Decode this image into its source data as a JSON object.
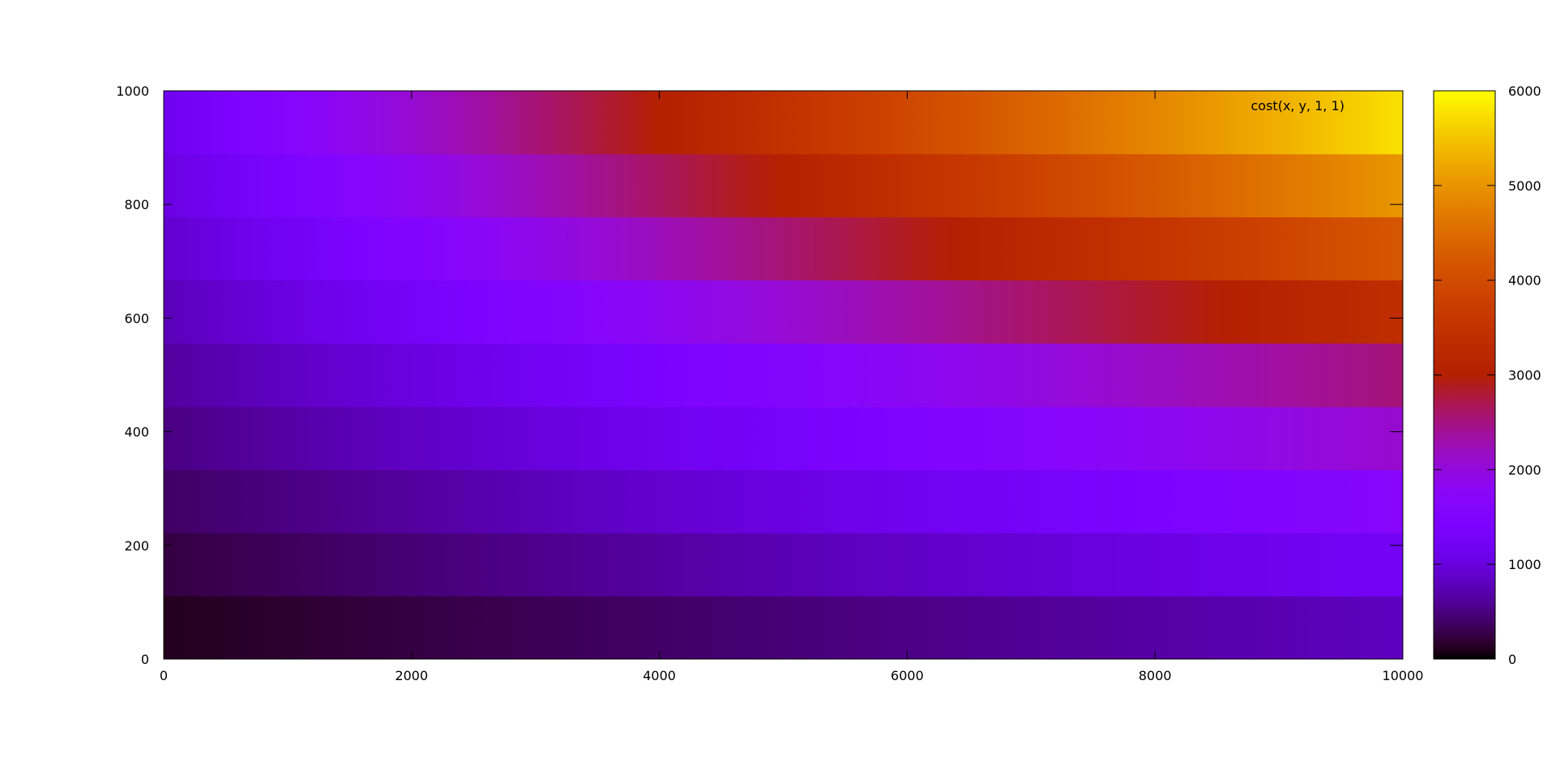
{
  "chart_data": {
    "type": "heatmap",
    "title": "",
    "xlabel": "",
    "ylabel": "",
    "legend_entry": "cost(x, y, 1, 1)",
    "legend_position": "top-right",
    "palette": "gnuplot (rgbformulae 7,5,15)",
    "grid": false,
    "xlim": [
      0,
      10000
    ],
    "ylim": [
      0,
      1000
    ],
    "cblim": [
      0,
      6000
    ],
    "x_ticks": [
      0,
      2000,
      4000,
      6000,
      8000,
      10000
    ],
    "y_ticks": [
      0,
      200,
      400,
      600,
      800,
      1000
    ],
    "cb_ticks": [
      0,
      1000,
      2000,
      3000,
      4000,
      5000,
      6000
    ],
    "y_bands": [
      0,
      111,
      222,
      333,
      444,
      556,
      667,
      778,
      889,
      1000
    ],
    "value_model": "value = x * a + b for each y band",
    "bands": [
      {
        "y_from": 0,
        "y_to": 111,
        "a": 0.07,
        "b": 110
      },
      {
        "y_from": 111,
        "y_to": 222,
        "a": 0.1,
        "b": 250
      },
      {
        "y_from": 222,
        "y_to": 333,
        "a": 0.13,
        "b": 380
      },
      {
        "y_from": 333,
        "y_to": 444,
        "a": 0.16,
        "b": 510
      },
      {
        "y_from": 444,
        "y_to": 556,
        "a": 0.19,
        "b": 640
      },
      {
        "y_from": 556,
        "y_to": 667,
        "a": 0.26,
        "b": 770
      },
      {
        "y_from": 667,
        "y_to": 778,
        "a": 0.33,
        "b": 900
      },
      {
        "y_from": 778,
        "y_to": 889,
        "a": 0.4,
        "b": 1030
      },
      {
        "y_from": 889,
        "y_to": 1000,
        "a": 0.46,
        "b": 1160
      }
    ]
  }
}
